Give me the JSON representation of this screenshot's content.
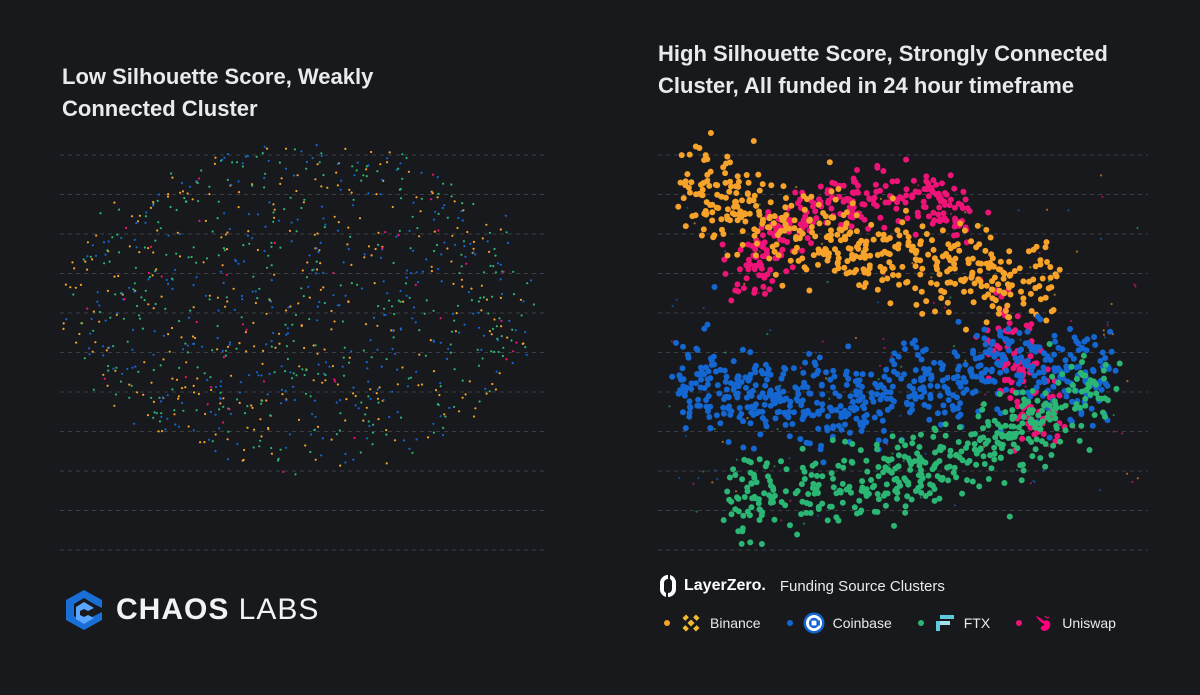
{
  "colors": {
    "Binance": "#f7a229",
    "Coinbase": "#1466d1",
    "FTX": "#2bb673",
    "Uniswap": "#ee1477"
  },
  "brand": {
    "logo_icon": "chaos-labs-logo-icon",
    "name_bold": "CHAOS",
    "name_light": " LABS"
  },
  "layerzero": {
    "logo_icon": "layerzero-logo-icon",
    "brand": "LayerZero.",
    "subtitle": "Funding Source Clusters"
  },
  "chart_data": [
    {
      "type": "scatter",
      "title": "Low Silhouette Score, Weakly Connected Cluster",
      "xlabel": "",
      "ylabel": "",
      "grid": true,
      "series": [
        {
          "name": "Binance",
          "distribution": "diffuse ellipse",
          "approx_points": 320
        },
        {
          "name": "Coinbase",
          "distribution": "diffuse ellipse",
          "approx_points": 320
        },
        {
          "name": "FTX",
          "distribution": "diffuse ellipse",
          "approx_points": 320
        },
        {
          "name": "Uniswap",
          "distribution": "diffuse ellipse",
          "approx_points": 40
        }
      ]
    },
    {
      "type": "scatter",
      "title": "High Silhouette Score, Strongly Connected Cluster, All funded in 24 hour timeframe",
      "xlabel": "",
      "ylabel": "",
      "grid": true,
      "legend": "bottom",
      "series": [
        {
          "name": "Binance",
          "distribution": "upper-left band",
          "approx_points": 460
        },
        {
          "name": "Coinbase",
          "distribution": "middle band",
          "approx_points": 620
        },
        {
          "name": "FTX",
          "distribution": "lower band",
          "approx_points": 440
        },
        {
          "name": "Uniswap",
          "distribution": "top arc",
          "approx_points": 380
        }
      ]
    }
  ],
  "legend": [
    {
      "name": "Binance",
      "icon": "binance-icon"
    },
    {
      "name": "Coinbase",
      "icon": "coinbase-icon"
    },
    {
      "name": "FTX",
      "icon": "ftx-icon"
    },
    {
      "name": "Uniswap",
      "icon": "uniswap-icon"
    }
  ]
}
